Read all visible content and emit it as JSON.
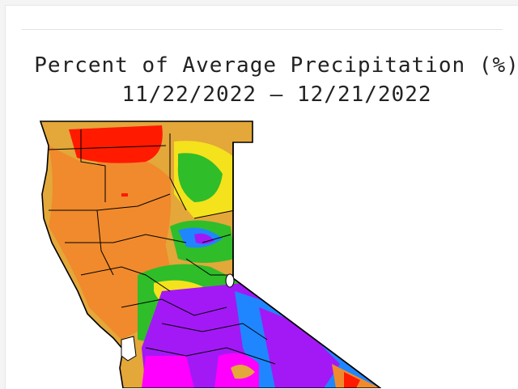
{
  "figure": {
    "title": "Percent of Average Precipitation (%)",
    "date_range": "11/22/2022 – 12/21/2022"
  },
  "map": {
    "region": "California",
    "palette": {
      "red": "#ff1a00",
      "orange": "#f08a2c",
      "tan": "#e3a73a",
      "yellow": "#f4e21c",
      "light_green": "#a6e44a",
      "green": "#2fbd2a",
      "teal": "#22b98c",
      "blue": "#1f86ff",
      "purple": "#a319f5",
      "magenta": "#ff00ff",
      "border": "#000000",
      "ocean": "#ffffff"
    }
  }
}
